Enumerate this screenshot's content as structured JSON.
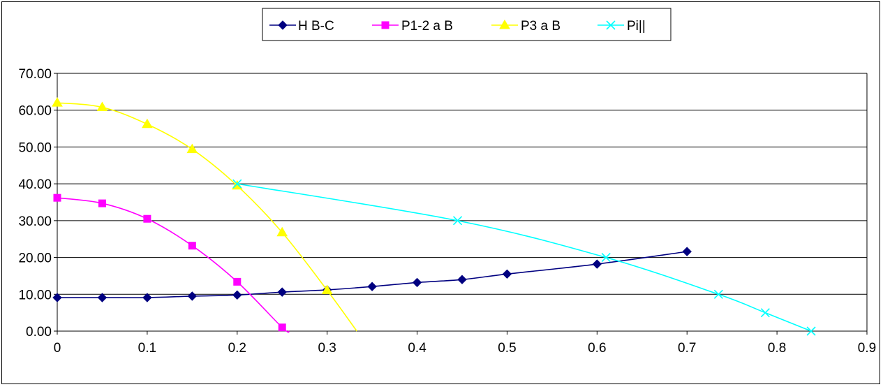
{
  "chart_data": {
    "type": "line",
    "title": "",
    "xlabel": "",
    "ylabel": "",
    "xlim": [
      0,
      0.9
    ],
    "ylim": [
      0,
      70
    ],
    "x_ticks": [
      "0",
      "0.1",
      "0.2",
      "0.3",
      "0.4",
      "0.5",
      "0.6",
      "0.7",
      "0.8",
      "0.9"
    ],
    "y_ticks": [
      "0.00",
      "10.00",
      "20.00",
      "30.00",
      "40.00",
      "50.00",
      "60.00",
      "70.00"
    ],
    "grid": "horizontal",
    "legend_position": "top-center",
    "series": [
      {
        "name": "H B-C",
        "color": "#000080",
        "marker": "diamond",
        "x": [
          0,
          0.05,
          0.1,
          0.15,
          0.2,
          0.25,
          0.3,
          0.35,
          0.4,
          0.45,
          0.5,
          0.6,
          0.7
        ],
        "y": [
          9.1,
          9.1,
          9.1,
          9.5,
          9.8,
          10.6,
          11.2,
          12.1,
          13.2,
          14.0,
          15.5,
          18.2,
          21.6
        ]
      },
      {
        "name": "P1-2 a B",
        "color": "#FF00FF",
        "marker": "square",
        "x": [
          0,
          0.05,
          0.1,
          0.15,
          0.2,
          0.25
        ],
        "y": [
          36.2,
          34.7,
          30.5,
          23.2,
          13.4,
          1.0
        ],
        "line_extends_to": [
          0.258,
          0
        ]
      },
      {
        "name": "P3 a B",
        "color": "#FFFF00",
        "marker": "triangle",
        "x": [
          0,
          0.05,
          0.1,
          0.15,
          0.2,
          0.25,
          0.3
        ],
        "y": [
          62.0,
          60.8,
          56.2,
          49.4,
          39.5,
          26.8,
          11.1
        ],
        "line_extends_to": [
          0.333,
          0
        ]
      },
      {
        "name": "Pi||",
        "color": "#00FFFF",
        "marker": "x",
        "x": [
          0.2,
          0.445,
          0.61,
          0.735,
          0.787,
          0.838
        ],
        "y": [
          40.0,
          30.0,
          20.0,
          10.0,
          5.0,
          0.0
        ]
      }
    ]
  }
}
